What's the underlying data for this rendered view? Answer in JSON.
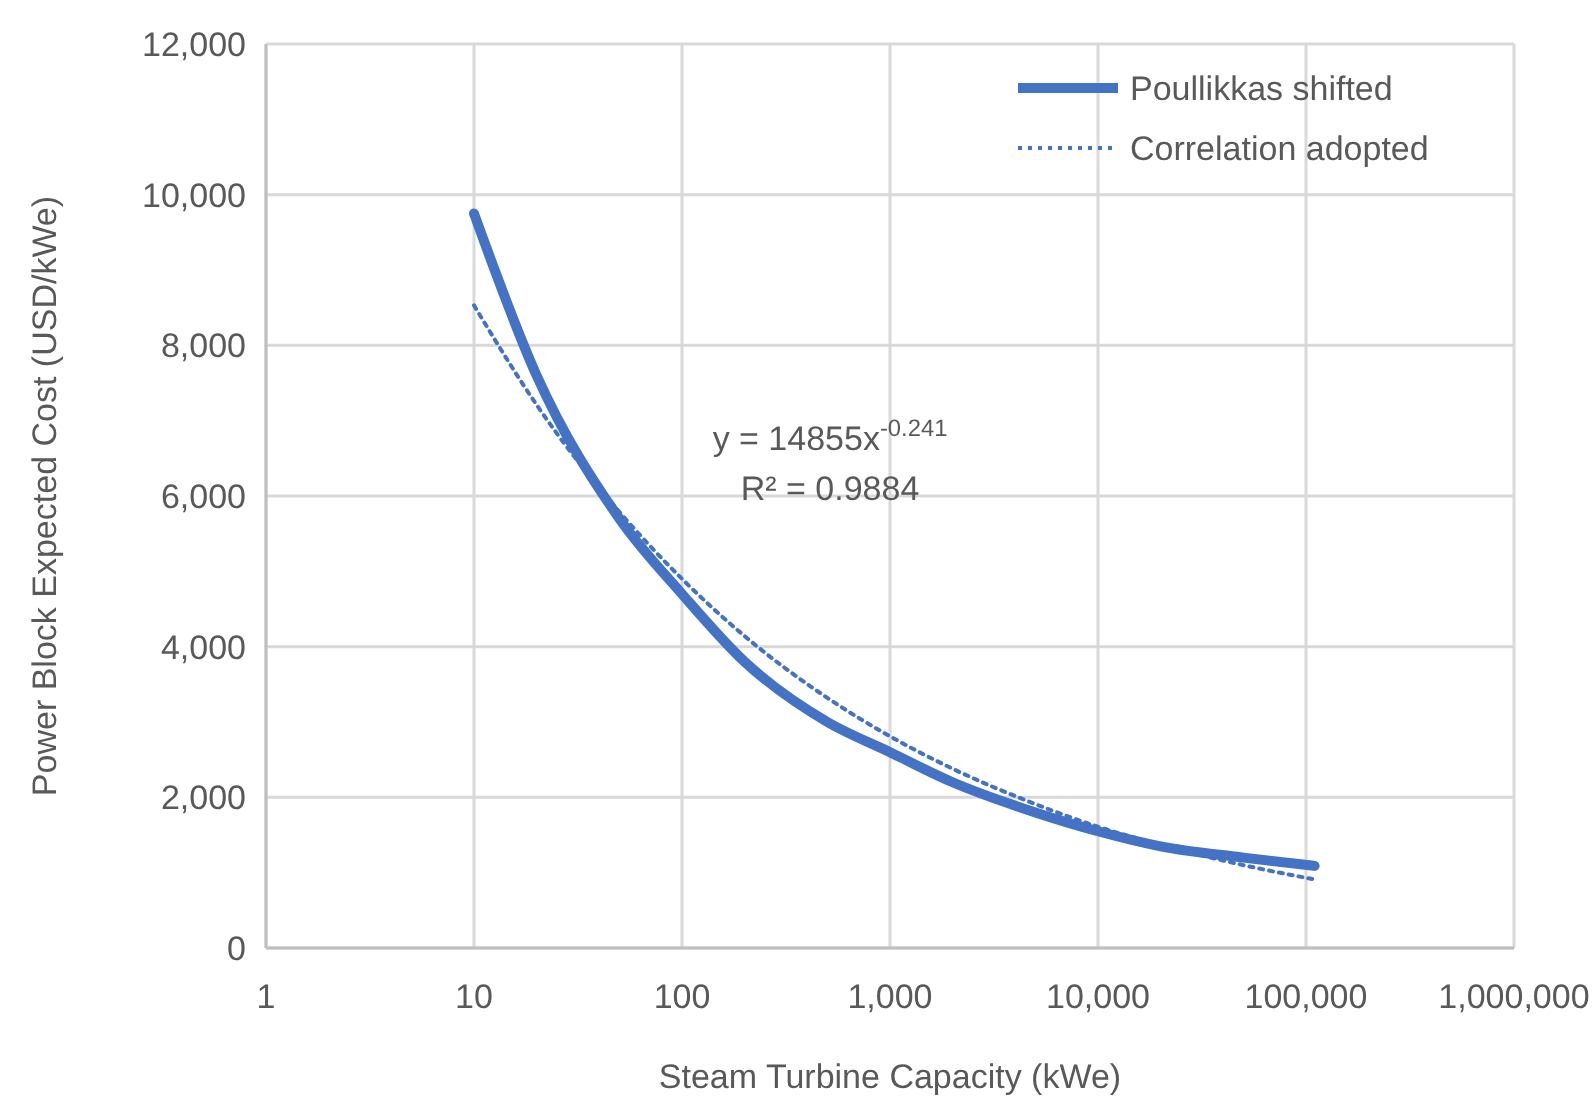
{
  "chart_data": {
    "type": "line",
    "xlabel": "Steam Turbine Capacity (kWe)",
    "ylabel": "Power Block Expected Cost (USD/kWe)",
    "log": "x",
    "xlim": [
      1,
      1000000
    ],
    "xticks": [
      {
        "value": 1,
        "label": "1"
      },
      {
        "value": 10,
        "label": "10"
      },
      {
        "value": 100,
        "label": "100"
      },
      {
        "value": 1000,
        "label": "1,000"
      },
      {
        "value": 10000,
        "label": "10,000"
      },
      {
        "value": 100000,
        "label": "100,000"
      },
      {
        "value": 1000000,
        "label": "1,000,000"
      }
    ],
    "ylim": [
      0,
      12000
    ],
    "yticks": [
      {
        "value": 0,
        "label": "0"
      },
      {
        "value": 2000,
        "label": "2,000"
      },
      {
        "value": 4000,
        "label": "4,000"
      },
      {
        "value": 6000,
        "label": "6,000"
      },
      {
        "value": 8000,
        "label": "8,000"
      },
      {
        "value": 10000,
        "label": "10,000"
      },
      {
        "value": 12000,
        "label": "12,000"
      }
    ],
    "grid": true,
    "legend": "top right",
    "annotations": [
      "y = 14855x$^{-0.241}$",
      "R² = 0.9884"
    ],
    "series": [
      {
        "name": "Poullikkas shifted",
        "color": "#4472c4",
        "line_style": "solid",
        "x": [
          10,
          20,
          50,
          100,
          200,
          500,
          1000,
          2000,
          5000,
          10000,
          20000,
          50000,
          110000
        ],
        "values": [
          9750,
          7600,
          5700,
          4700,
          3800,
          3000,
          2600,
          2200,
          1800,
          1550,
          1350,
          1200,
          1090
        ]
      },
      {
        "name": "Correlation adopted",
        "color": "#4472c4",
        "line_style": "dotted",
        "x": [
          10,
          20,
          50,
          100,
          200,
          500,
          1000,
          2000,
          5000,
          10000,
          20000,
          50000,
          110000
        ],
        "values": [
          8530,
          7210,
          5790,
          4900,
          4140,
          3320,
          2810,
          2380,
          1910,
          1610,
          1370,
          1100,
          910
        ]
      }
    ]
  }
}
